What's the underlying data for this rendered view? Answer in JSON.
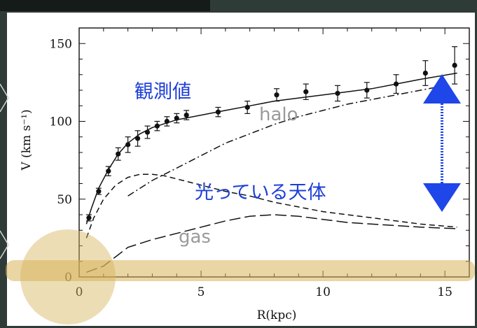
{
  "chart_data": {
    "type": "line",
    "xlabel": "R(kpc)",
    "ylabel": "V (km s⁻¹)",
    "xlim": [
      0,
      16
    ],
    "ylim": [
      0,
      160
    ],
    "xticks": [
      0,
      5,
      10,
      15
    ],
    "yticks": [
      0,
      50,
      100,
      150
    ],
    "grid": false,
    "observed_points": {
      "x": [
        0.4,
        0.8,
        1.2,
        1.6,
        2.0,
        2.4,
        2.8,
        3.2,
        3.6,
        4.0,
        4.4,
        5.7,
        6.9,
        8.1,
        9.3,
        10.6,
        11.8,
        13.0,
        14.2,
        15.4
      ],
      "y": [
        38,
        55,
        68,
        79,
        85,
        89,
        93,
        97,
        100,
        102,
        104,
        106,
        109,
        117,
        119,
        118,
        120,
        124,
        131,
        136
      ],
      "err": [
        2,
        2,
        3,
        4,
        5,
        5,
        4,
        3,
        3,
        3,
        3,
        3,
        4,
        4,
        5,
        5,
        5,
        6,
        8,
        12
      ]
    },
    "series": [
      {
        "style": "solid",
        "x": [
          0.3,
          0.5,
          0.8,
          1.2,
          1.6,
          2.0,
          2.5,
          3.0,
          4.0,
          5.0,
          6.0,
          7.0,
          8.0,
          9.0,
          10.0,
          11.0,
          12.0,
          13.0,
          14.0,
          15.5
        ],
        "y": [
          34,
          44,
          57,
          69,
          79,
          86,
          92,
          96,
          101,
          104,
          107,
          110,
          113,
          115,
          117,
          119,
          121,
          124,
          127,
          131
        ]
      },
      {
        "style": "dash-dot",
        "x": [
          2.0,
          3.0,
          4.0,
          5.0,
          6.0,
          7.0,
          8.0,
          9.0,
          10.0,
          11.0,
          12.0,
          13.0,
          14.0,
          15.0
        ],
        "y": [
          52,
          62,
          70,
          78,
          86,
          92,
          98,
          103,
          107,
          111,
          114,
          117,
          120,
          123
        ]
      },
      {
        "style": "short-dash",
        "x": [
          0.3,
          0.6,
          1.0,
          1.5,
          2.0,
          2.5,
          3.0,
          3.5,
          4.0,
          5.0,
          6.0,
          7.0,
          8.0,
          9.0,
          10.0,
          11.0,
          12.0,
          13.0,
          14.0,
          15.5
        ],
        "y": [
          25,
          38,
          50,
          59,
          64,
          66,
          66,
          65,
          63,
          59,
          55,
          52,
          48,
          45,
          42,
          40,
          38,
          36,
          34,
          32
        ]
      },
      {
        "style": "long-dash",
        "x": [
          0.3,
          1.0,
          1.5,
          2.0,
          3.0,
          4.0,
          5.0,
          6.0,
          7.0,
          8.0,
          9.0,
          10.0,
          11.0,
          12.0,
          13.0,
          14.0,
          15.5
        ],
        "y": [
          3,
          7,
          13,
          19,
          24,
          28,
          32,
          36,
          39,
          40,
          39,
          37,
          35,
          34,
          33,
          32,
          31
        ]
      }
    ]
  },
  "annotations": {
    "observed": "観測値",
    "halo": "halo",
    "luminous": "光っている天体",
    "gas": "gas"
  },
  "colors": {
    "annotation_blue": "#1d3fd6",
    "annotation_gray": "#9a9a9a",
    "arrow": "#1f46e8",
    "highlight": "#d8b45a"
  }
}
